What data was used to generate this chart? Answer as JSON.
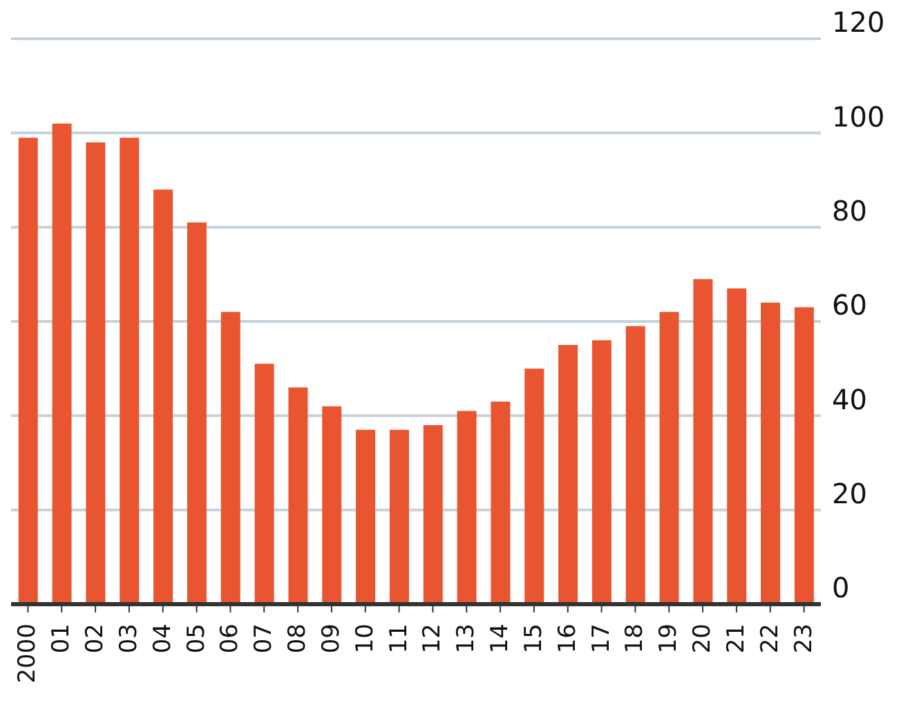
{
  "chart_data": {
    "type": "bar",
    "categories": [
      "2000",
      "01",
      "02",
      "03",
      "04",
      "05",
      "06",
      "07",
      "08",
      "09",
      "10",
      "11",
      "12",
      "13",
      "14",
      "15",
      "16",
      "17",
      "18",
      "19",
      "20",
      "21",
      "22",
      "23"
    ],
    "values": [
      99,
      102,
      98,
      99,
      88,
      81,
      62,
      51,
      46,
      42,
      37,
      37,
      38,
      41,
      43,
      50,
      55,
      56,
      59,
      62,
      69,
      67,
      64,
      63
    ],
    "color": "#e85530",
    "ylim": [
      0,
      120
    ],
    "yticks": [
      0,
      20,
      40,
      60,
      80,
      100,
      120
    ],
    "grid": "y"
  }
}
